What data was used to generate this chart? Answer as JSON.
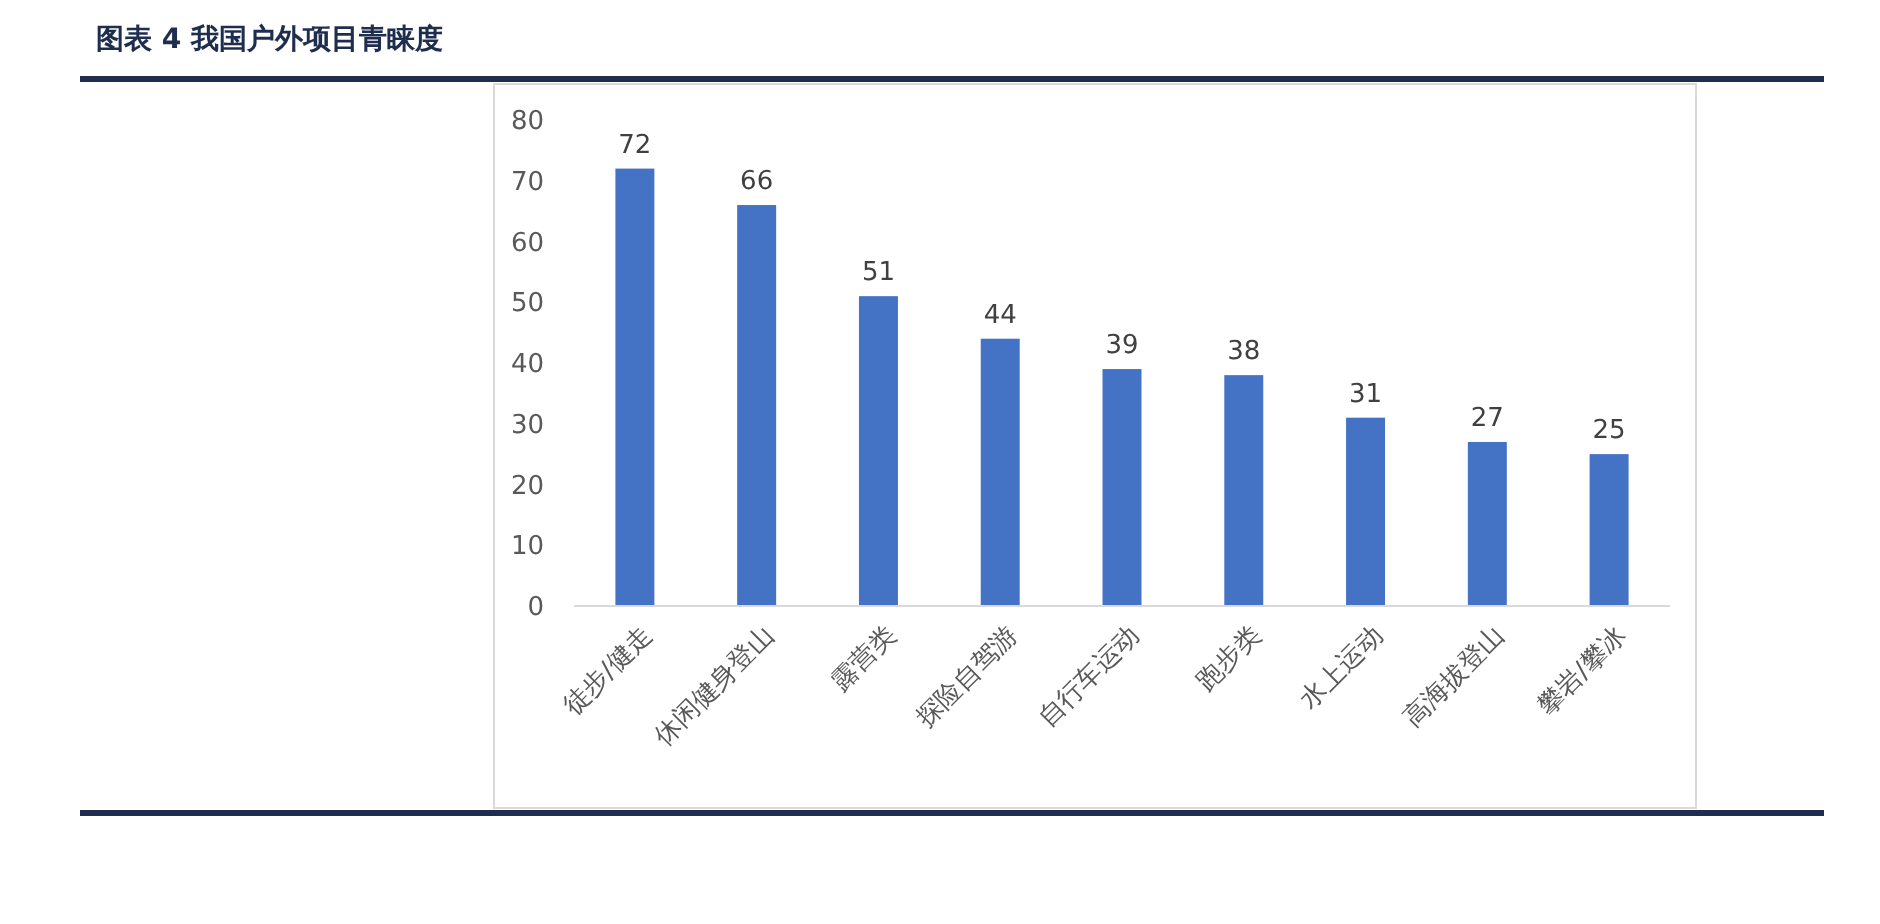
{
  "chart_data": {
    "type": "bar",
    "title": "图表 4 我国户外项目青睐度",
    "categories": [
      "徒步/健走",
      "休闲健身登山",
      "露营类",
      "探险自驾游",
      "自行车运动",
      "跑步类",
      "水上运动",
      "高海拔登山",
      "攀岩/攀冰"
    ],
    "values": [
      72,
      66,
      51,
      44,
      39,
      38,
      31,
      27,
      25
    ],
    "color": "#4472c4",
    "ylim": [
      0,
      80
    ],
    "yticks": [
      0,
      10,
      20,
      30,
      40,
      50,
      60,
      70,
      80
    ],
    "grid": false,
    "data_labels": true
  }
}
